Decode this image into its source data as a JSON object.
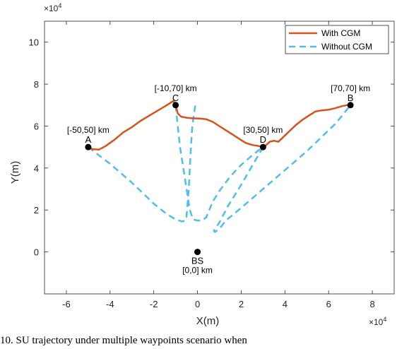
{
  "chart_data": {
    "type": "line",
    "xlabel": "X(m)",
    "ylabel": "Y(m)",
    "x_exponent": "×10^4",
    "y_exponent": "×10^4",
    "xlim": [
      -70000,
      90000
    ],
    "ylim": [
      -20000,
      110000
    ],
    "xticks": [
      -60000,
      -40000,
      -20000,
      0,
      20000,
      40000,
      60000,
      80000
    ],
    "xtick_labels": [
      "-6",
      "-4",
      "-2",
      "0",
      "2",
      "4",
      "6",
      "8"
    ],
    "yticks": [
      0,
      20000,
      40000,
      60000,
      80000,
      100000
    ],
    "ytick_labels": [
      "0",
      "2",
      "4",
      "6",
      "8",
      "10"
    ],
    "grid": false,
    "legend_position": "top-right",
    "series": [
      {
        "name": "With CGM",
        "color": "#D95319",
        "style": "solid",
        "x": [
          -50000,
          -48000,
          -45000,
          -42000,
          -38000,
          -34000,
          -30000,
          -26000,
          -22000,
          -18000,
          -14000,
          -11000,
          -10000,
          -9000,
          -7500,
          -5000,
          -2000,
          1000,
          4000,
          7000,
          10000,
          13000,
          16000,
          19000,
          22000,
          25000,
          28000,
          30000,
          31500,
          33000,
          35000,
          37000,
          38500,
          40000,
          42000,
          45000,
          48000,
          51000,
          54000,
          57000,
          60000,
          63000,
          66000,
          68500,
          70000
        ],
        "y": [
          50000,
          49000,
          48800,
          50500,
          53500,
          57000,
          59500,
          62500,
          65000,
          67500,
          70000,
          72000,
          70000,
          66000,
          64500,
          64000,
          63700,
          63600,
          63300,
          62000,
          60000,
          58000,
          56000,
          54000,
          52000,
          51000,
          50500,
          50000,
          51000,
          52500,
          53000,
          52500,
          54000,
          55500,
          57500,
          60500,
          63000,
          65000,
          67000,
          67500,
          67800,
          68500,
          69500,
          70000,
          70000
        ]
      },
      {
        "name": "Without CGM",
        "color": "#4DBEEE",
        "style": "dashed",
        "segments": [
          {
            "x": [
              -50000,
              -40000,
              -30000,
              -20000,
              -14000,
              -10000,
              -7000,
              -5500,
              -5000,
              -4000,
              -3500,
              -3000,
              -2500,
              -2000,
              -1000
            ],
            "y": [
              50000,
              42000,
              33000,
              23000,
              18000,
              15500,
              14500,
              15000,
              17000,
              30000,
              40000,
              50000,
              58000,
              63000,
              70000
            ]
          },
          {
            "x": [
              -10000,
              -9000,
              -8000,
              -6500,
              -5000,
              -3500,
              -2000,
              0,
              2000,
              4000,
              5000,
              7000,
              10000,
              15000,
              20000,
              25000,
              28000,
              30000
            ],
            "y": [
              70000,
              60000,
              50000,
              40000,
              30000,
              20000,
              15500,
              15000,
              15000,
              16500,
              19000,
              24000,
              29000,
              36000,
              41500,
              46000,
              48500,
              50000
            ]
          },
          {
            "x": [
              30000,
              25000,
              20000,
              14000,
              10000,
              8000,
              7500,
              8000,
              10000,
              13000,
              20000,
              30000,
              40000,
              50000,
              57000,
              63000,
              67000,
              70000
            ],
            "y": [
              50000,
              41000,
              32000,
              22000,
              14000,
              11000,
              10000,
              9500,
              11000,
              15000,
              21000,
              30000,
              39000,
              48000,
              55000,
              61000,
              66000,
              70000
            ]
          }
        ]
      }
    ],
    "points": [
      {
        "label": "A",
        "x": -50000,
        "y": 50000,
        "annotation": "[-50,50] km",
        "ann_pos": "above"
      },
      {
        "label": "C",
        "x": -10000,
        "y": 70000,
        "annotation": "[-10,70] km",
        "ann_pos": "above"
      },
      {
        "label": "D",
        "x": 30000,
        "y": 50000,
        "annotation": "[30,50] km",
        "ann_pos": "above"
      },
      {
        "label": "B",
        "x": 70000,
        "y": 70000,
        "annotation": "[70,70] km",
        "ann_pos": "above"
      },
      {
        "label": "BS",
        "x": 0,
        "y": 0,
        "annotation": "[0,0] km",
        "ann_pos": "below"
      }
    ]
  },
  "caption": "10. SU trajectory under multiple waypoints scenario when"
}
